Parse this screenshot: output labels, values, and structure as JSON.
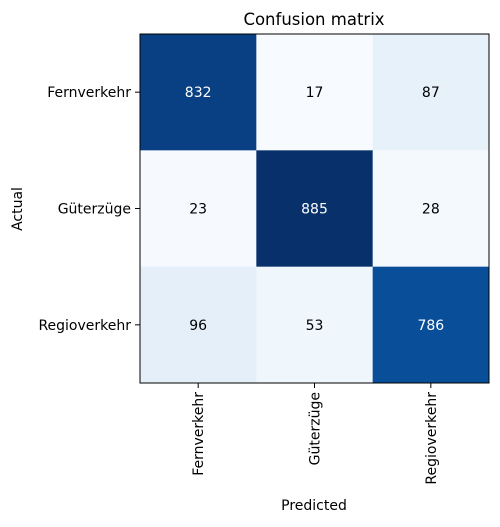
{
  "chart_data": {
    "type": "heatmap",
    "title": "Confusion matrix",
    "xlabel": "Predicted",
    "ylabel": "Actual",
    "x_categories": [
      "Fernverkehr",
      "Güterzüge",
      "Regioverkehr"
    ],
    "y_categories": [
      "Fernverkehr",
      "Güterzüge",
      "Regioverkehr"
    ],
    "values": [
      [
        832,
        17,
        87
      ],
      [
        23,
        885,
        28
      ],
      [
        96,
        53,
        786
      ]
    ],
    "colormap": "Blues",
    "value_range": [
      17,
      885
    ],
    "colors": {
      "low": "#f7fbff",
      "high": "#08306b",
      "text_dark": "#000000",
      "text_light": "#ffffff"
    }
  }
}
